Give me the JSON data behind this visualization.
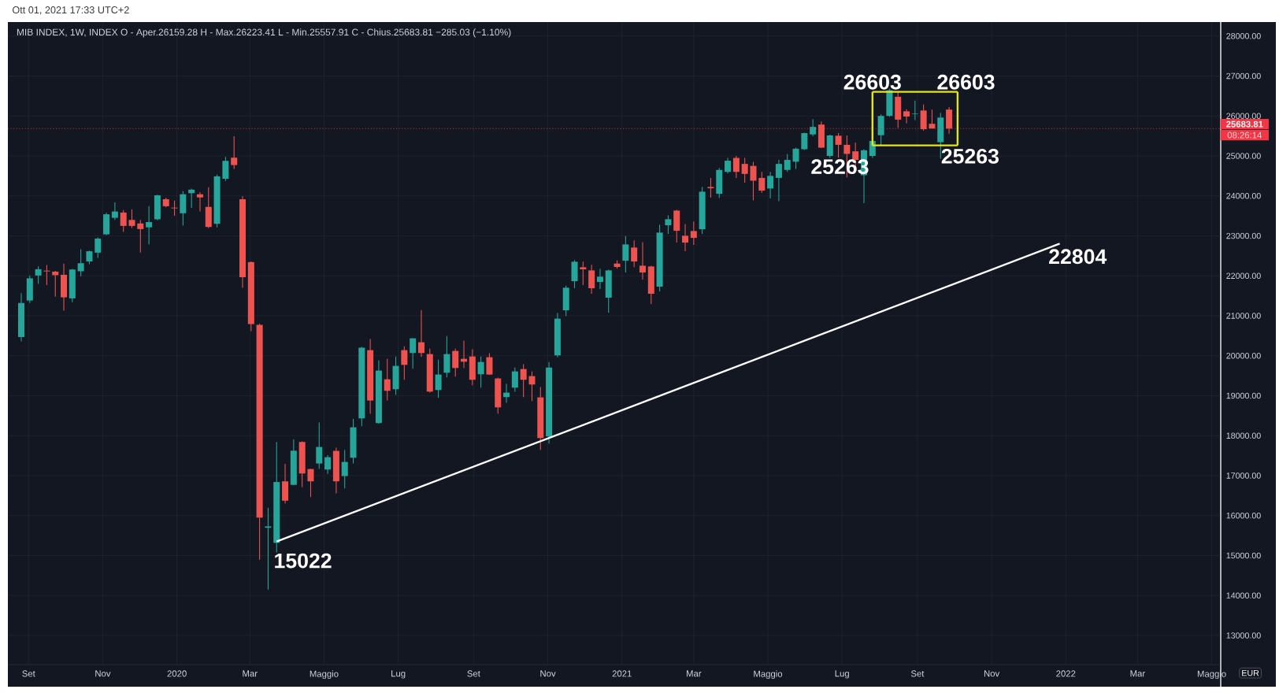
{
  "chart_data": {
    "type": "candlestick",
    "title": "MIB INDEX, 1W, INDEX  O - Aper.26159.28  H - Max.26223.41  L - Min.25557.91  C - Chius.25683.81  −285.03 (−1.10%)",
    "subtitle": "Ott 01, 2021 17:33 UTC+2",
    "x": [
      "2019-08-26",
      "2019-09-02",
      "2019-09-09",
      "2019-09-16",
      "2019-09-23",
      "2019-09-30",
      "2019-10-07",
      "2019-10-14",
      "2019-10-21",
      "2019-10-28",
      "2019-11-04",
      "2019-11-11",
      "2019-11-18",
      "2019-11-25",
      "2019-12-02",
      "2019-12-09",
      "2019-12-16",
      "2019-12-23",
      "2019-12-30",
      "2020-01-06",
      "2020-01-13",
      "2020-01-20",
      "2020-01-27",
      "2020-02-03",
      "2020-02-10",
      "2020-02-17",
      "2020-02-24",
      "2020-03-02",
      "2020-03-09",
      "2020-03-16",
      "2020-03-23",
      "2020-03-30",
      "2020-04-06",
      "2020-04-13",
      "2020-04-20",
      "2020-04-27",
      "2020-05-04",
      "2020-05-11",
      "2020-05-18",
      "2020-05-25",
      "2020-06-01",
      "2020-06-08",
      "2020-06-15",
      "2020-06-22",
      "2020-06-29",
      "2020-07-06",
      "2020-07-13",
      "2020-07-20",
      "2020-07-27",
      "2020-08-03",
      "2020-08-10",
      "2020-08-17",
      "2020-08-24",
      "2020-08-31",
      "2020-09-07",
      "2020-09-14",
      "2020-09-21",
      "2020-09-28",
      "2020-10-05",
      "2020-10-12",
      "2020-10-19",
      "2020-10-26",
      "2020-11-02",
      "2020-11-09",
      "2020-11-16",
      "2020-11-23",
      "2020-11-30",
      "2020-12-07",
      "2020-12-14",
      "2020-12-21",
      "2020-12-28",
      "2021-01-04",
      "2021-01-11",
      "2021-01-18",
      "2021-01-25",
      "2021-02-01",
      "2021-02-08",
      "2021-02-15",
      "2021-02-22",
      "2021-03-01",
      "2021-03-08",
      "2021-03-15",
      "2021-03-22",
      "2021-03-29",
      "2021-04-05",
      "2021-04-12",
      "2021-04-19",
      "2021-04-26",
      "2021-05-03",
      "2021-05-10",
      "2021-05-17",
      "2021-05-24",
      "2021-05-31",
      "2021-06-07",
      "2021-06-14",
      "2021-06-21",
      "2021-06-28",
      "2021-07-05",
      "2021-07-12",
      "2021-07-19",
      "2021-07-26",
      "2021-08-02",
      "2021-08-09",
      "2021-08-16",
      "2021-08-23",
      "2021-08-30",
      "2021-09-06",
      "2021-09-13",
      "2021-09-20",
      "2021-09-27"
    ],
    "ohlc": [
      [
        20467,
        21567,
        20361,
        21320
      ],
      [
        21382,
        22007,
        21320,
        21937
      ],
      [
        22007,
        22236,
        21796,
        22165
      ],
      [
        22130,
        22271,
        21769,
        22110
      ],
      [
        22104,
        22121,
        21479,
        22016
      ],
      [
        22025,
        22306,
        21127,
        21461
      ],
      [
        21435,
        22170,
        21338,
        22157
      ],
      [
        22113,
        22667,
        21989,
        22315
      ],
      [
        22359,
        22630,
        22289,
        22614
      ],
      [
        22579,
        22958,
        22447,
        22931
      ],
      [
        23037,
        23574,
        23020,
        23539
      ],
      [
        23451,
        23838,
        23398,
        23609
      ],
      [
        23583,
        23644,
        23099,
        23248
      ],
      [
        23398,
        23662,
        23195,
        23248
      ],
      [
        23310,
        23398,
        22579,
        23169
      ],
      [
        23213,
        23741,
        22782,
        23345
      ],
      [
        23415,
        24030,
        23389,
        24014
      ],
      [
        23917,
        23952,
        23715,
        23741
      ],
      [
        23706,
        23882,
        23503,
        23688
      ],
      [
        23565,
        24120,
        23257,
        24040
      ],
      [
        24067,
        24181,
        23697,
        24155
      ],
      [
        24040,
        24093,
        23609,
        23961
      ],
      [
        23724,
        24217,
        23195,
        23222
      ],
      [
        23301,
        24533,
        23213,
        24489
      ],
      [
        24428,
        24974,
        24375,
        24877
      ],
      [
        24956,
        25493,
        24674,
        24771
      ],
      [
        23917,
        23988,
        21699,
        21963
      ],
      [
        22342,
        22360,
        20616,
        20792
      ],
      [
        20775,
        20800,
        14894,
        15951
      ],
      [
        15695,
        16197,
        14146,
        15730
      ],
      [
        15317,
        17843,
        15079,
        16840
      ],
      [
        16857,
        17297,
        16303,
        16373
      ],
      [
        16769,
        17905,
        16760,
        17623
      ],
      [
        17842,
        17855,
        16712,
        17054
      ],
      [
        17165,
        17170,
        16463,
        16857
      ],
      [
        17303,
        18328,
        17172,
        17717
      ],
      [
        17152,
        17513,
        17041,
        17461
      ],
      [
        17619,
        17697,
        16555,
        16857
      ],
      [
        16988,
        17645,
        16680,
        17343
      ],
      [
        17448,
        18420,
        17303,
        18209
      ],
      [
        18433,
        20219,
        18236,
        20199
      ],
      [
        20140,
        20416,
        18551,
        18879
      ],
      [
        18315,
        19884,
        18300,
        19628
      ],
      [
        19411,
        19923,
        18879,
        19122
      ],
      [
        19162,
        19982,
        19017,
        19746
      ],
      [
        20140,
        20238,
        19398,
        19772
      ],
      [
        20068,
        20440,
        19674,
        20435
      ],
      [
        20337,
        21144,
        19969,
        20068
      ],
      [
        20041,
        20179,
        19076,
        19102
      ],
      [
        19142,
        19903,
        18945,
        19529
      ],
      [
        19575,
        20494,
        19457,
        20041
      ],
      [
        20120,
        20179,
        19477,
        19693
      ],
      [
        19923,
        20376,
        19693,
        19851
      ],
      [
        19982,
        20160,
        19260,
        19398
      ],
      [
        19536,
        19982,
        19201,
        19844
      ],
      [
        19963,
        20061,
        19516,
        19529
      ],
      [
        19431,
        19450,
        18551,
        18708
      ],
      [
        18965,
        19299,
        18820,
        19076
      ],
      [
        19201,
        19706,
        19096,
        19608
      ],
      [
        19667,
        19785,
        18965,
        19398
      ],
      [
        19490,
        19608,
        18866,
        19280
      ],
      [
        18958,
        19214,
        17645,
        17940
      ],
      [
        17980,
        19844,
        17802,
        19706
      ],
      [
        20009,
        21066,
        19963,
        20928
      ],
      [
        21137,
        21754,
        20993,
        21702
      ],
      [
        21866,
        22391,
        21689,
        22352
      ],
      [
        22214,
        22352,
        21768,
        22162
      ],
      [
        22135,
        22273,
        21551,
        21689
      ],
      [
        21846,
        22175,
        21669,
        21978
      ],
      [
        21452,
        22155,
        21078,
        22135
      ],
      [
        22306,
        22391,
        22181,
        22221
      ],
      [
        22378,
        22995,
        22083,
        22785
      ],
      [
        22707,
        22884,
        22214,
        22359
      ],
      [
        22253,
        22844,
        21905,
        22083
      ],
      [
        22234,
        22253,
        21295,
        21551
      ],
      [
        21728,
        23278,
        21610,
        23081
      ],
      [
        23265,
        23514,
        23048,
        23416
      ],
      [
        23632,
        23652,
        22831,
        23127
      ],
      [
        23002,
        23297,
        22615,
        22831
      ],
      [
        23120,
        23357,
        22772,
        22949
      ],
      [
        23166,
        24223,
        23048,
        24105
      ],
      [
        24223,
        24450,
        23954,
        24190
      ],
      [
        24052,
        24700,
        23950,
        24650
      ],
      [
        24600,
        24950,
        24560,
        24880
      ],
      [
        24950,
        25000,
        24450,
        24600
      ],
      [
        24800,
        24950,
        24328,
        24550
      ],
      [
        24750,
        24850,
        23888,
        24380
      ],
      [
        24450,
        24600,
        24080,
        24131
      ],
      [
        24184,
        24600,
        23934,
        24500
      ],
      [
        24450,
        24900,
        23869,
        24800
      ],
      [
        24650,
        25050,
        24600,
        24900
      ],
      [
        24855,
        25206,
        24673,
        25180
      ],
      [
        25167,
        25583,
        25148,
        25570
      ],
      [
        25538,
        25921,
        25492,
        25726
      ],
      [
        25785,
        25863,
        25200,
        25206
      ],
      [
        25000,
        25530,
        24950,
        25512
      ],
      [
        25505,
        25570,
        24953,
        25278
      ],
      [
        25278,
        25512,
        24465,
        25050
      ],
      [
        25115,
        25336,
        24700,
        24900
      ],
      [
        24517,
        25167,
        23815,
        25141
      ],
      [
        25000,
        25400,
        24950,
        25375
      ],
      [
        25518,
        26038,
        25258,
        26001
      ],
      [
        26001,
        26681,
        25980,
        26643
      ],
      [
        26480,
        26597,
        25700,
        25908
      ],
      [
        26116,
        26168,
        25811,
        25986
      ],
      [
        26045,
        26383,
        25895,
        26058
      ],
      [
        26136,
        26285,
        25635,
        25668
      ],
      [
        25804,
        26155,
        25680,
        25687
      ],
      [
        25343,
        26077,
        24933,
        25960
      ],
      [
        26159,
        26223,
        25558,
        25684
      ]
    ],
    "series": [
      {
        "type": "line",
        "color": "#ffffff",
        "x": [
          "2020-03-23",
          "2021-12-27"
        ],
        "values": [
          15350,
          22804
        ]
      },
      {
        "type": "line",
        "color": "#e5e51c",
        "x": [
          "2021-07-26",
          "2021-10-04"
        ],
        "values": [
          26603,
          26603
        ]
      },
      {
        "type": "line",
        "color": "#e5e51c",
        "x": [
          "2021-07-26",
          "2021-10-04"
        ],
        "values": [
          25263,
          25263
        ]
      }
    ],
    "xlim": [
      "2019-08-15",
      "2022-05-08"
    ],
    "xticks": [
      {
        "value": "2019-09-01",
        "label": "Set"
      },
      {
        "value": "2019-11-01",
        "label": "Nov"
      },
      {
        "value": "2020-01-01",
        "label": "2020"
      },
      {
        "value": "2020-03-01",
        "label": "Mar"
      },
      {
        "value": "2020-05-01",
        "label": "Maggio"
      },
      {
        "value": "2020-07-01",
        "label": "Lug"
      },
      {
        "value": "2020-09-01",
        "label": "Set"
      },
      {
        "value": "2020-11-01",
        "label": "Nov"
      },
      {
        "value": "2021-01-01",
        "label": "2021"
      },
      {
        "value": "2021-03-01",
        "label": "Mar"
      },
      {
        "value": "2021-05-01",
        "label": "Maggio"
      },
      {
        "value": "2021-07-01",
        "label": "Lug"
      },
      {
        "value": "2021-09-01",
        "label": "Set"
      },
      {
        "value": "2021-11-01",
        "label": "Nov"
      },
      {
        "value": "2022-01-01",
        "label": "2022"
      },
      {
        "value": "2022-03-01",
        "label": "Mar"
      },
      {
        "value": "2022-05-01",
        "label": "Maggio"
      }
    ],
    "ylim": [
      12270,
      28350
    ],
    "yticks": [
      {
        "value": 13000,
        "label": "13000.00"
      },
      {
        "value": 14000,
        "label": "14000.00"
      },
      {
        "value": 15000,
        "label": "15000.00"
      },
      {
        "value": 16000,
        "label": "16000.00"
      },
      {
        "value": 17000,
        "label": "17000.00"
      },
      {
        "value": 18000,
        "label": "18000.00"
      },
      {
        "value": 19000,
        "label": "19000.00"
      },
      {
        "value": 20000,
        "label": "20000.00"
      },
      {
        "value": 21000,
        "label": "21000.00"
      },
      {
        "value": 22000,
        "label": "22000.00"
      },
      {
        "value": 23000,
        "label": "23000.00"
      },
      {
        "value": 24000,
        "label": "24000.00"
      },
      {
        "value": 25000,
        "label": "25000.00"
      },
      {
        "value": 26000,
        "label": "26000.00"
      },
      {
        "value": 27000,
        "label": "27000.00"
      },
      {
        "value": 28000,
        "label": "28000.00"
      }
    ],
    "grid": true,
    "ref_lines": [
      {
        "axis": "y",
        "value": 25683.81,
        "label": "25683.81",
        "color": "#f23645",
        "line_style": "dotted"
      }
    ],
    "annotations": [
      {
        "text": "26603",
        "x": "2021-07-26",
        "y": 26603
      },
      {
        "text": "26603",
        "x": "2021-10-04",
        "y": 26603
      },
      {
        "text": "25263",
        "x": "2021-07-26",
        "y": 25263
      },
      {
        "text": "25263",
        "x": "2021-10-04",
        "y": 25263
      },
      {
        "text": "15022",
        "x": "2020-03-23",
        "y": 15350
      },
      {
        "text": "22804",
        "x": "2021-12-27",
        "y": 22804
      },
      "08:26:14",
      "EUR"
    ]
  }
}
